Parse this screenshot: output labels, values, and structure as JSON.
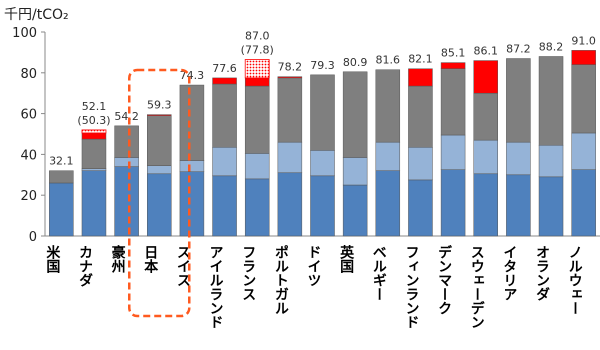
{
  "chart_data": {
    "type": "bar",
    "stacked": true,
    "ylabel": "千円/tCO₂",
    "ylim": [
      0,
      100
    ],
    "yticks": [
      0,
      20,
      40,
      60,
      80,
      100
    ],
    "grid": false,
    "legend": "none",
    "highlighted_category": "日本",
    "categories": [
      "米国",
      "カナダ",
      "豪州",
      "日本",
      "スイス",
      "アイルランド",
      "フランス",
      "ポルトガル",
      "ドイツ",
      "英国",
      "ベルギー",
      "フィンランド",
      "デンマーク",
      "スウェーデン",
      "イタリア",
      "オランダ",
      "ノルウェー"
    ],
    "totals_labels": [
      "32.1",
      "52.1",
      "54.2",
      "59.3",
      "74.3",
      "77.6",
      "87.0",
      "78.2",
      "79.3",
      "80.9",
      "81.6",
      "82.1",
      "85.1",
      "86.1",
      "87.2",
      "88.2",
      "91.0"
    ],
    "sub_labels": {
      "カナダ": "(50.3)",
      "フランス": "(77.8)"
    },
    "series": [
      {
        "color": "#4f81bd",
        "values": [
          26,
          32,
          34,
          30.5,
          31.5,
          29.5,
          28,
          31,
          29.5,
          25,
          32,
          27.5,
          32.5,
          30.5,
          30,
          29,
          32.5
        ]
      },
      {
        "color": "#95b3d7",
        "values": [
          0,
          1,
          4.5,
          4,
          5.5,
          14,
          12.5,
          15,
          12.5,
          13.5,
          14,
          16,
          17,
          16.5,
          16,
          15.5,
          18
        ]
      },
      {
        "color": "#7f7f7f",
        "values": [
          6,
          14.5,
          15.5,
          24.5,
          37,
          31,
          33,
          31.5,
          37,
          42,
          35.5,
          30,
          32.5,
          23,
          41,
          43.5,
          33.5
        ]
      },
      {
        "color": "#ff0000",
        "values": [
          0,
          3,
          0,
          0.5,
          0,
          3,
          4,
          0.6,
          0,
          0,
          0,
          8.5,
          3,
          16,
          0,
          0,
          7
        ]
      },
      {
        "color": "#ff9999",
        "pattern": "dotted",
        "values": [
          0,
          1.5,
          0,
          0,
          0,
          0,
          9,
          0,
          0,
          0,
          0,
          0,
          0,
          0,
          0,
          0,
          0
        ]
      }
    ]
  },
  "colors": {
    "highlight_box": "#ff5a1f",
    "bar_stroke": "#555555"
  }
}
